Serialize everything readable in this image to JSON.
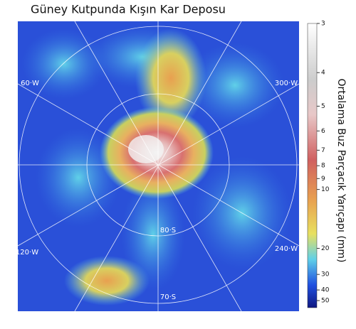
{
  "title": "Güney Kutpunda Kışın Kar Deposu",
  "grid_labels": [
    "60·W",
    "300·W",
    "120·W",
    "240·W",
    "80·S",
    "70·S"
  ],
  "colorbar": {
    "label": "Ortalama Buz Parçacık Yarıçapı (mm)",
    "lim": [
      3,
      50
    ],
    "ticks": [
      3,
      4,
      5,
      6,
      7,
      8,
      9,
      10,
      20,
      30,
      40,
      50
    ]
  }
}
